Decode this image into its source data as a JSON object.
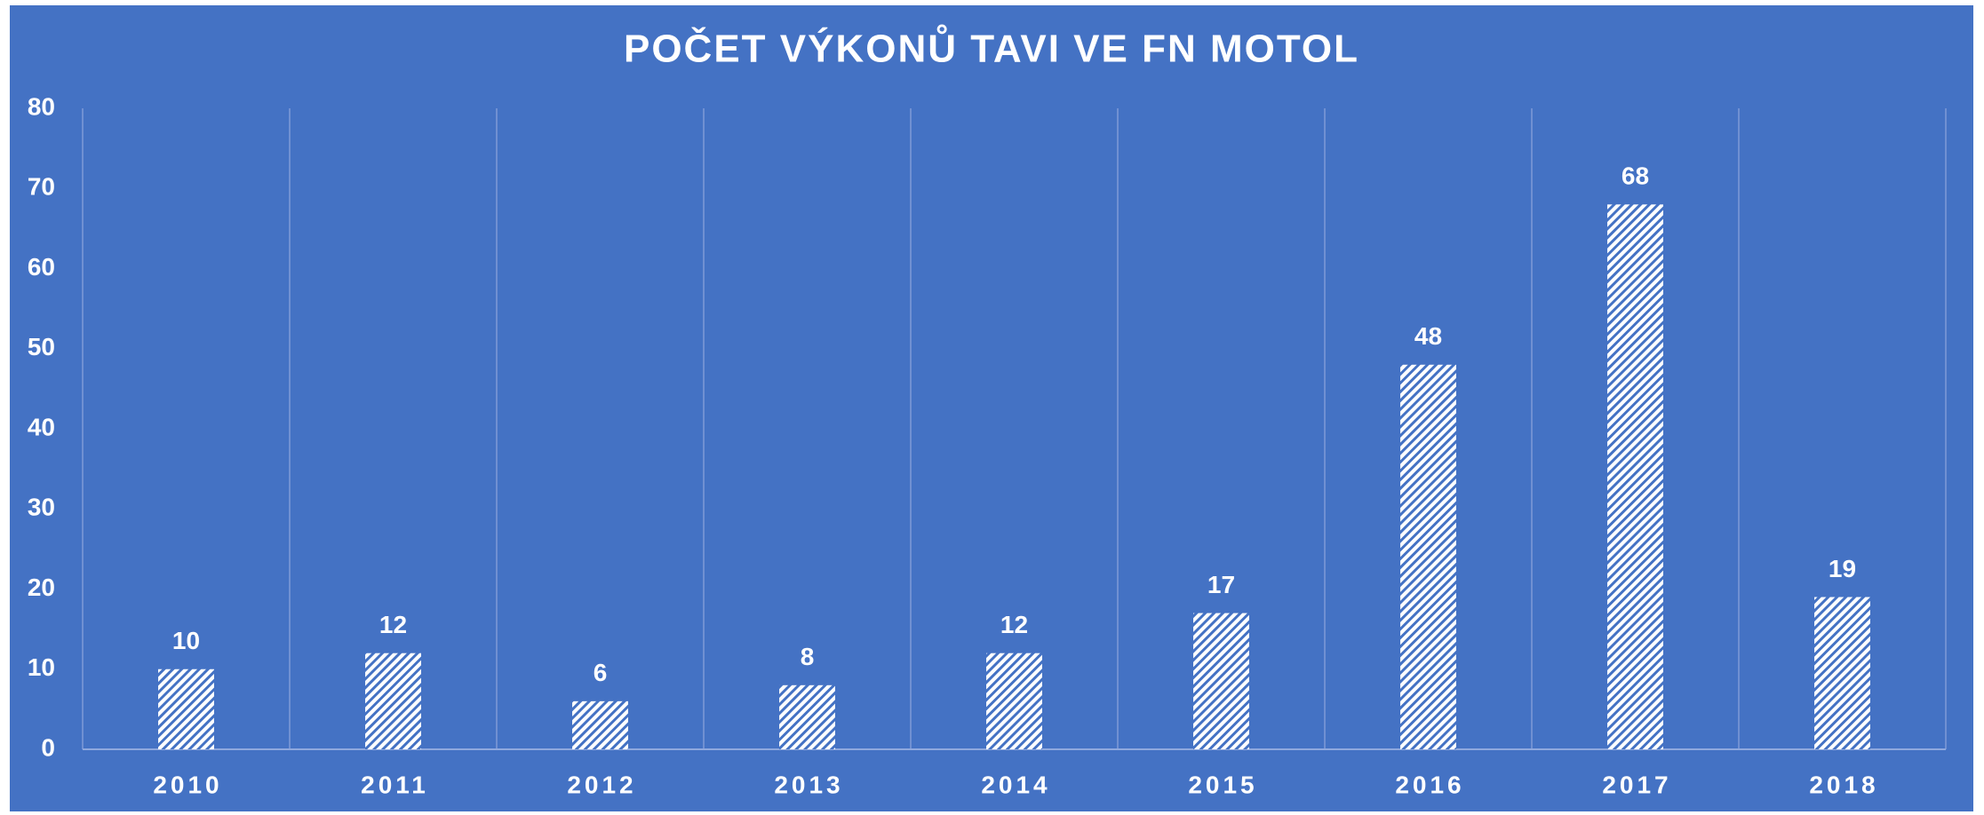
{
  "chart_data": {
    "type": "bar",
    "title": "POČET VÝKONŮ TAVI VE FN MOTOL",
    "categories": [
      "2010",
      "2011",
      "2012",
      "2013",
      "2014",
      "2015",
      "2016",
      "2017",
      "2018"
    ],
    "values": [
      10,
      12,
      6,
      8,
      12,
      17,
      48,
      68,
      19
    ],
    "color": "#ffffff",
    "ylim": [
      0,
      80
    ],
    "yticks": [
      0,
      10,
      20,
      30,
      40,
      50,
      60,
      70,
      80
    ],
    "grid": false
  }
}
